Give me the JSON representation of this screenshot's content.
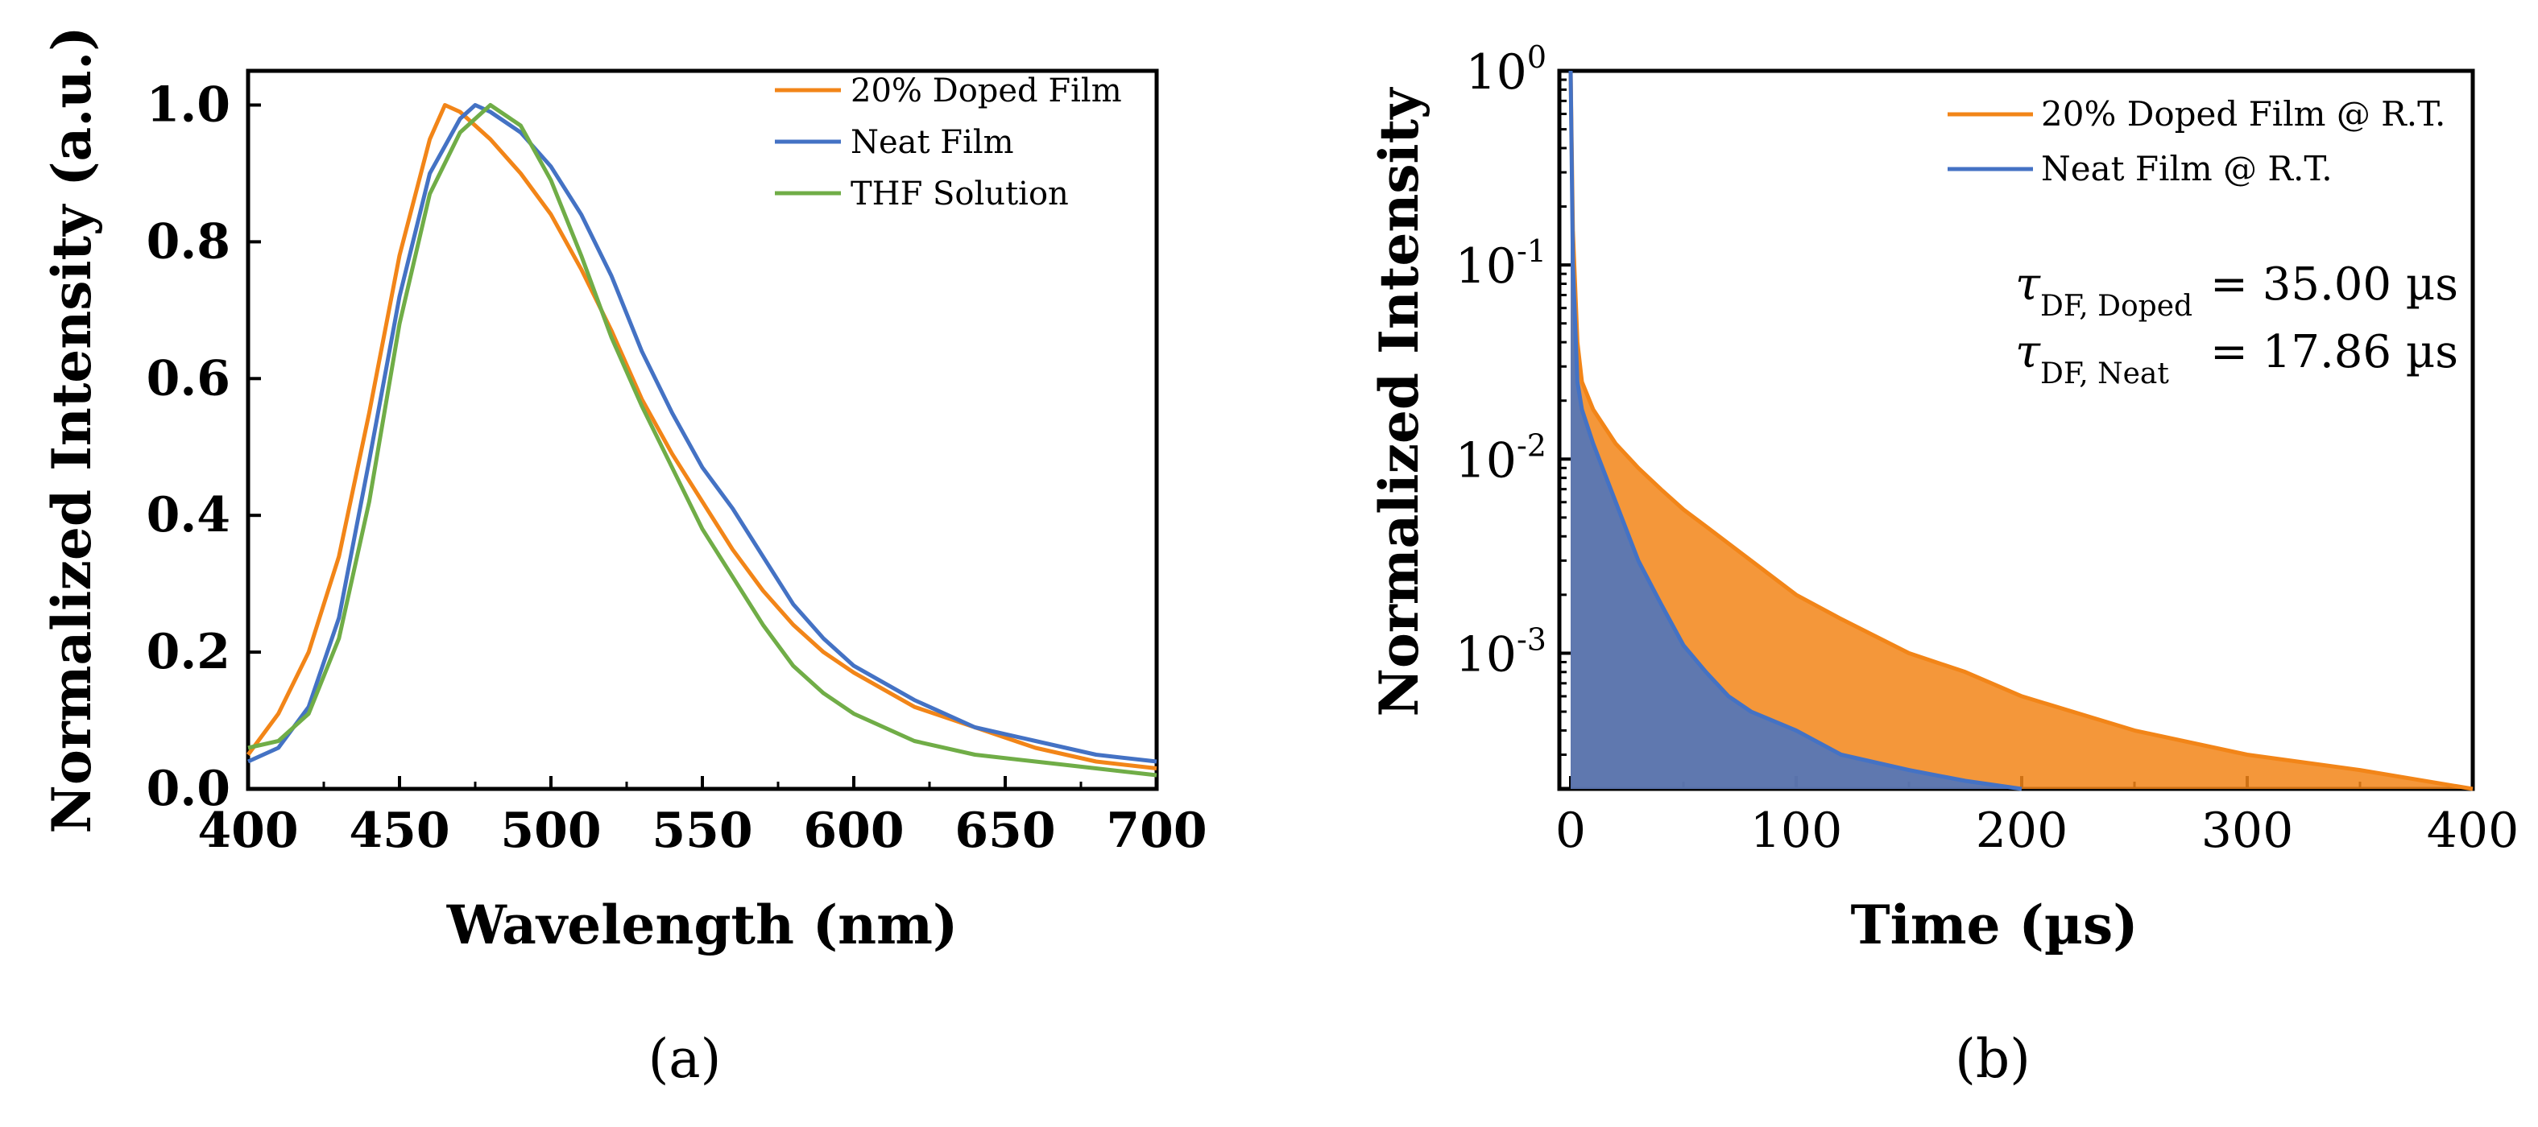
{
  "figure": {
    "panel_a_label": "(a)",
    "panel_b_label": "(b)"
  },
  "colors": {
    "orange": "#f28518",
    "blue": "#4472c4",
    "green": "#70ad47"
  },
  "chart_data": [
    {
      "id": "a",
      "type": "line",
      "title": "",
      "xlabel": "Wavelength (nm)",
      "ylabel": "Normalized Intensity (a.u.)",
      "xlim": [
        400,
        700
      ],
      "ylim": [
        0,
        1.05
      ],
      "x_ticks": [
        400,
        450,
        500,
        550,
        600,
        650,
        700
      ],
      "x_tick_labels": [
        "400",
        "450",
        "500",
        "550",
        "600",
        "650",
        "700"
      ],
      "y_ticks": [
        0,
        0.2,
        0.4,
        0.6,
        0.8,
        1.0
      ],
      "y_tick_labels": [
        "0.0",
        "0.2",
        "0.4",
        "0.6",
        "0.8",
        "1.0"
      ],
      "legend_position": "top-right",
      "series": [
        {
          "name": "20% Doped Film",
          "color": "orange",
          "x": [
            400,
            410,
            420,
            430,
            440,
            450,
            460,
            465,
            470,
            480,
            490,
            500,
            510,
            520,
            530,
            540,
            550,
            560,
            570,
            580,
            590,
            600,
            620,
            640,
            660,
            680,
            700
          ],
          "y": [
            0.05,
            0.11,
            0.2,
            0.34,
            0.55,
            0.78,
            0.95,
            1.0,
            0.99,
            0.95,
            0.9,
            0.84,
            0.76,
            0.67,
            0.57,
            0.49,
            0.42,
            0.35,
            0.29,
            0.24,
            0.2,
            0.17,
            0.12,
            0.09,
            0.06,
            0.04,
            0.03
          ]
        },
        {
          "name": "Neat Film",
          "color": "blue",
          "x": [
            400,
            410,
            420,
            430,
            440,
            450,
            460,
            470,
            475,
            480,
            490,
            500,
            510,
            520,
            530,
            540,
            550,
            560,
            570,
            580,
            590,
            600,
            620,
            640,
            660,
            680,
            700
          ],
          "y": [
            0.04,
            0.06,
            0.12,
            0.25,
            0.48,
            0.72,
            0.9,
            0.98,
            1.0,
            0.99,
            0.96,
            0.91,
            0.84,
            0.75,
            0.64,
            0.55,
            0.47,
            0.41,
            0.34,
            0.27,
            0.22,
            0.18,
            0.13,
            0.09,
            0.07,
            0.05,
            0.04
          ]
        },
        {
          "name": "THF Solution",
          "color": "green",
          "x": [
            400,
            410,
            420,
            430,
            440,
            450,
            460,
            470,
            480,
            490,
            500,
            510,
            520,
            530,
            540,
            550,
            560,
            570,
            580,
            590,
            600,
            620,
            640,
            660,
            680,
            700
          ],
          "y": [
            0.06,
            0.07,
            0.11,
            0.22,
            0.42,
            0.68,
            0.87,
            0.96,
            1.0,
            0.97,
            0.89,
            0.78,
            0.66,
            0.56,
            0.47,
            0.38,
            0.31,
            0.24,
            0.18,
            0.14,
            0.11,
            0.07,
            0.05,
            0.04,
            0.03,
            0.02
          ]
        }
      ]
    },
    {
      "id": "b",
      "type": "line",
      "yscale": "log",
      "title": "",
      "xlabel": "Time (µs)",
      "ylabel": "Normalized Intensity",
      "xlim": [
        -5,
        400
      ],
      "ylim": [
        0.0002,
        1
      ],
      "x_ticks": [
        0,
        100,
        200,
        300,
        400
      ],
      "x_tick_labels": [
        "0",
        "100",
        "200",
        "300",
        "400"
      ],
      "y_ticks": [
        0.001,
        0.01,
        0.1,
        1
      ],
      "y_tick_labels": [
        {
          "base": "10",
          "exp": "-3"
        },
        {
          "base": "10",
          "exp": "-2"
        },
        {
          "base": "10",
          "exp": "-1"
        },
        {
          "base": "10",
          "exp": "0"
        }
      ],
      "legend_position": "top-right",
      "annotations": [
        {
          "symbol": "τ",
          "subscript": "DF, Doped",
          "value": "= 35.00 µs"
        },
        {
          "symbol": "τ",
          "subscript": "DF, Neat",
          "value": "= 17.86 µs"
        }
      ],
      "series": [
        {
          "name": "20% Doped Film @ R.T.",
          "color": "orange",
          "x": [
            0,
            1,
            3,
            5,
            10,
            20,
            30,
            40,
            50,
            60,
            80,
            100,
            120,
            150,
            175,
            200,
            250,
            300,
            350,
            400
          ],
          "y": [
            1,
            0.15,
            0.04,
            0.025,
            0.018,
            0.012,
            0.009,
            0.007,
            0.0055,
            0.0045,
            0.003,
            0.002,
            0.0015,
            0.001,
            0.0008,
            0.0006,
            0.0004,
            0.0003,
            0.00025,
            0.0002
          ]
        },
        {
          "name": "Neat Film @ R.T.",
          "color": "blue",
          "x": [
            0,
            1,
            3,
            5,
            10,
            20,
            30,
            40,
            50,
            60,
            70,
            80,
            100,
            120,
            150,
            175,
            200
          ],
          "y": [
            1,
            0.1,
            0.025,
            0.018,
            0.012,
            0.006,
            0.003,
            0.0018,
            0.0011,
            0.0008,
            0.0006,
            0.0005,
            0.0004,
            0.0003,
            0.00025,
            0.00022,
            0.0002
          ]
        }
      ]
    }
  ]
}
